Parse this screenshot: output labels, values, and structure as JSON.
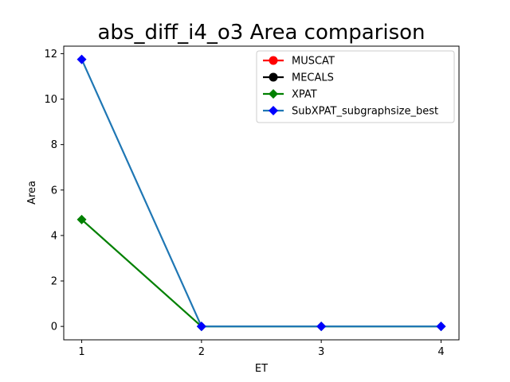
{
  "chart_data": {
    "type": "line",
    "title": "abs_diff_i4_o3 Area comparison",
    "xlabel": "ET",
    "ylabel": "Area",
    "xlim": [
      0.85,
      4.15
    ],
    "ylim": [
      -0.59,
      12.33
    ],
    "xticks": [
      1,
      2,
      3,
      4
    ],
    "yticks": [
      0,
      2,
      4,
      6,
      8,
      10,
      12
    ],
    "grid": false,
    "legend_position": "top-right",
    "series": [
      {
        "name": "MUSCAT",
        "color": "#ff0000",
        "line_color": "#ff0000",
        "marker": "circle",
        "x": [],
        "y": []
      },
      {
        "name": "MECALS",
        "color": "#000000",
        "line_color": "#000000",
        "marker": "circle",
        "x": [],
        "y": []
      },
      {
        "name": "XPAT",
        "color": "#008000",
        "line_color": "#008000",
        "marker": "diamond",
        "x": [
          1,
          2,
          3,
          4
        ],
        "y": [
          4.7,
          0,
          0,
          0
        ]
      },
      {
        "name": "SubXPAT_subgraphsize_best",
        "color": "#0000ff",
        "line_color": "#1f77b4",
        "marker": "diamond",
        "x": [
          1,
          2,
          3,
          4
        ],
        "y": [
          11.75,
          0,
          0,
          0
        ]
      }
    ]
  }
}
